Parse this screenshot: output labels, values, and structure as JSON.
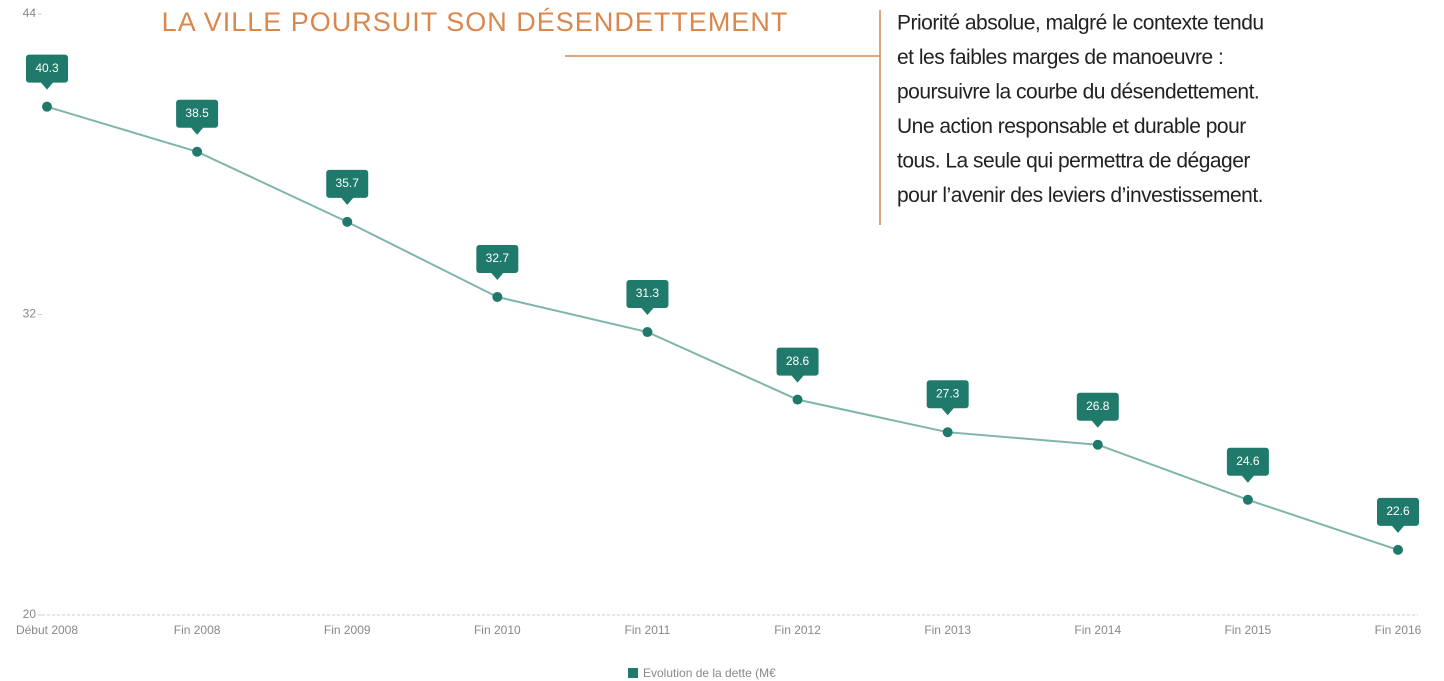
{
  "chart_data": {
    "type": "line",
    "title": "LA VILLE POURSUIT SON DÉSENDETTEMENT",
    "annotation": [
      "Priorité absolue, malgré le contexte tendu",
      "et les faibles marges de manoeuvre :",
      "poursuivre la courbe du désendettement.",
      "Une action responsable et durable pour",
      "tous. La seule qui permettra de dégager",
      "pour l’avenir des leviers d’investissement."
    ],
    "categories": [
      "Début 2008",
      "Fin 2008",
      "Fin 2009",
      "Fin 2010",
      "Fin 2011",
      "Fin 2012",
      "Fin 2013",
      "Fin 2014",
      "Fin 2015",
      "Fin 2016"
    ],
    "series": [
      {
        "name": "Evolution de la dette (M€",
        "color": "#1f7a6b",
        "line_color": "#7fb5aa",
        "values": [
          40.3,
          38.5,
          35.7,
          32.7,
          31.3,
          28.6,
          27.3,
          26.8,
          24.6,
          22.6
        ]
      }
    ],
    "ylim": [
      20,
      44
    ],
    "yticks": [
      20,
      32,
      44
    ],
    "grid": false,
    "legend": "bottom"
  }
}
